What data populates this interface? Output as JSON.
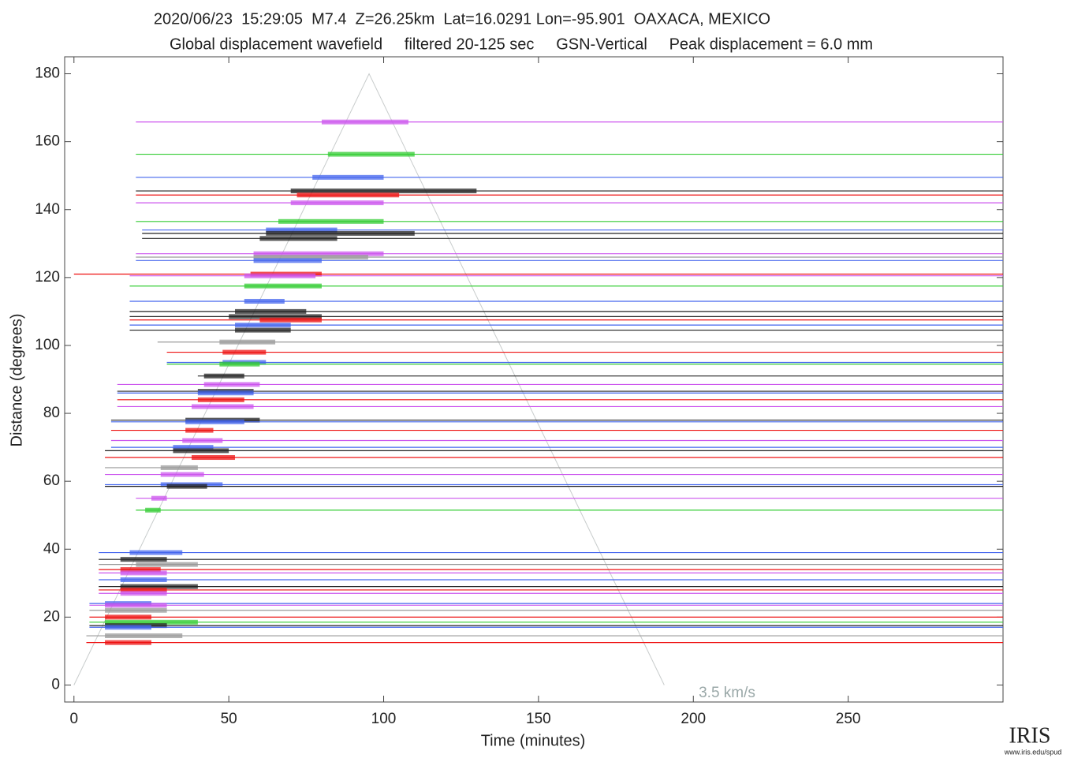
{
  "chart_data": {
    "type": "record-section",
    "title": "2020/06/23  15:29:05  M7.4  Z=26.25km  Lat=16.0291 Lon=-95.901  OAXACA, MEXICO",
    "subtitle": "Global displacement wavefield     filtered 20-125 sec     GSN-Vertical     Peak displacement = 6.0 mm",
    "x_label": "Time (minutes)",
    "y_label": "Distance (degrees)",
    "xlim": [
      -3,
      300
    ],
    "ylim": [
      -5,
      185
    ],
    "xticks": [
      0,
      50,
      100,
      150,
      200,
      250
    ],
    "yticks": [
      0,
      20,
      40,
      60,
      80,
      100,
      120,
      140,
      160,
      180
    ],
    "velocity_line": {
      "label": "3.5 km/s",
      "x": [
        0,
        95.3,
        190.6
      ],
      "y": [
        0,
        180,
        0
      ],
      "color": "#c8cccc"
    },
    "traces": [
      {
        "distance": 165.8,
        "color": "#cc55ee",
        "start": 20,
        "wave": [
          80,
          108
        ]
      },
      {
        "distance": 156.3,
        "color": "#33cc33",
        "start": 20,
        "wave": [
          82,
          110
        ]
      },
      {
        "distance": 149.5,
        "color": "#4466ee",
        "start": 20,
        "wave": [
          77,
          100
        ]
      },
      {
        "distance": 145.5,
        "color": "#222222",
        "start": 20,
        "wave": [
          70,
          130
        ]
      },
      {
        "distance": 144.3,
        "color": "#ee1111",
        "start": 20,
        "wave": [
          72,
          105
        ]
      },
      {
        "distance": 142.0,
        "color": "#cc55ee",
        "start": 20,
        "wave": [
          70,
          100
        ]
      },
      {
        "distance": 136.5,
        "color": "#33cc33",
        "start": 20,
        "wave": [
          66,
          100
        ]
      },
      {
        "distance": 134.0,
        "color": "#4466ee",
        "start": 22,
        "wave": [
          62,
          85
        ]
      },
      {
        "distance": 133.0,
        "color": "#222222",
        "start": 22,
        "wave": [
          62,
          110
        ]
      },
      {
        "distance": 131.5,
        "color": "#222222",
        "start": 22,
        "wave": [
          60,
          85
        ]
      },
      {
        "distance": 127.0,
        "color": "#cc55ee",
        "start": 20,
        "wave": [
          58,
          100
        ]
      },
      {
        "distance": 126.0,
        "color": "#999999",
        "start": 20,
        "wave": [
          58,
          95
        ]
      },
      {
        "distance": 125.0,
        "color": "#4466ee",
        "start": 20,
        "wave": [
          58,
          80
        ]
      },
      {
        "distance": 121.0,
        "color": "#ee1111",
        "start": 0,
        "wave": [
          57,
          80
        ]
      },
      {
        "distance": 120.5,
        "color": "#cc55ee",
        "start": 18,
        "wave": [
          55,
          78
        ]
      },
      {
        "distance": 117.5,
        "color": "#33cc33",
        "start": 18,
        "wave": [
          55,
          80
        ]
      },
      {
        "distance": 113.0,
        "color": "#4466ee",
        "start": 18,
        "wave": [
          55,
          68
        ]
      },
      {
        "distance": 110.0,
        "color": "#222222",
        "start": 18,
        "wave": [
          52,
          75
        ]
      },
      {
        "distance": 108.5,
        "color": "#222222",
        "start": 18,
        "wave": [
          50,
          80
        ]
      },
      {
        "distance": 107.5,
        "color": "#ee1111",
        "start": 18,
        "wave": [
          60,
          80
        ]
      },
      {
        "distance": 106.0,
        "color": "#4466ee",
        "start": 18,
        "wave": [
          52,
          70
        ]
      },
      {
        "distance": 104.5,
        "color": "#222222",
        "start": 18,
        "wave": [
          52,
          70
        ]
      },
      {
        "distance": 101.0,
        "color": "#999999",
        "start": 27,
        "wave": [
          47,
          65
        ]
      },
      {
        "distance": 98.0,
        "color": "#ee1111",
        "start": 30,
        "wave": [
          48,
          62
        ]
      },
      {
        "distance": 95.0,
        "color": "#4466ee",
        "start": 30,
        "wave": [
          48,
          62
        ]
      },
      {
        "distance": 94.5,
        "color": "#33cc33",
        "start": 30,
        "wave": [
          47,
          60
        ]
      },
      {
        "distance": 91.0,
        "color": "#222222",
        "start": 40,
        "wave": [
          42,
          55
        ]
      },
      {
        "distance": 88.5,
        "color": "#cc55ee",
        "start": 14,
        "wave": [
          42,
          60
        ]
      },
      {
        "distance": 86.5,
        "color": "#222222",
        "start": 14,
        "wave": [
          40,
          58
        ]
      },
      {
        "distance": 86.0,
        "color": "#4466ee",
        "start": 14,
        "wave": [
          40,
          58
        ]
      },
      {
        "distance": 84.0,
        "color": "#ee1111",
        "start": 14,
        "wave": [
          40,
          55
        ]
      },
      {
        "distance": 82.0,
        "color": "#cc55ee",
        "start": 14,
        "wave": [
          38,
          58
        ]
      },
      {
        "distance": 78.0,
        "color": "#222222",
        "start": 12,
        "wave": [
          36,
          60
        ]
      },
      {
        "distance": 77.5,
        "color": "#4466ee",
        "start": 12,
        "wave": [
          36,
          55
        ]
      },
      {
        "distance": 75.0,
        "color": "#ee1111",
        "start": 12,
        "wave": [
          36,
          45
        ]
      },
      {
        "distance": 72.0,
        "color": "#cc55ee",
        "start": 12,
        "wave": [
          35,
          48
        ]
      },
      {
        "distance": 70.0,
        "color": "#4466ee",
        "start": 12,
        "wave": [
          32,
          45
        ]
      },
      {
        "distance": 69.0,
        "color": "#222222",
        "start": 10,
        "wave": [
          32,
          50
        ]
      },
      {
        "distance": 67.0,
        "color": "#ee1111",
        "start": 10,
        "wave": [
          38,
          52
        ]
      },
      {
        "distance": 64.0,
        "color": "#999999",
        "start": 10,
        "wave": [
          28,
          40
        ]
      },
      {
        "distance": 62.0,
        "color": "#cc55ee",
        "start": 10,
        "wave": [
          28,
          42
        ]
      },
      {
        "distance": 59.0,
        "color": "#4466ee",
        "start": 10,
        "wave": [
          28,
          48
        ]
      },
      {
        "distance": 58.5,
        "color": "#222222",
        "start": 10,
        "wave": [
          30,
          43
        ]
      },
      {
        "distance": 55.0,
        "color": "#cc55ee",
        "start": 20,
        "wave": [
          25,
          30
        ]
      },
      {
        "distance": 51.5,
        "color": "#33cc33",
        "start": 20,
        "wave": [
          23,
          28
        ]
      },
      {
        "distance": 39.0,
        "color": "#4466ee",
        "start": 8,
        "wave": [
          18,
          35
        ]
      },
      {
        "distance": 37.0,
        "color": "#222222",
        "start": 8,
        "wave": [
          15,
          30
        ]
      },
      {
        "distance": 35.5,
        "color": "#999999",
        "start": 8,
        "wave": [
          20,
          40
        ]
      },
      {
        "distance": 34.0,
        "color": "#ee1111",
        "start": 8,
        "wave": [
          15,
          28
        ]
      },
      {
        "distance": 33.0,
        "color": "#cc55ee",
        "start": 8,
        "wave": [
          15,
          30
        ]
      },
      {
        "distance": 31.0,
        "color": "#4466ee",
        "start": 8,
        "wave": [
          15,
          30
        ]
      },
      {
        "distance": 29.0,
        "color": "#222222",
        "start": 8,
        "wave": [
          15,
          40
        ]
      },
      {
        "distance": 28.0,
        "color": "#ee1111",
        "start": 8,
        "wave": [
          15,
          30
        ]
      },
      {
        "distance": 27.0,
        "color": "#cc55ee",
        "start": 8,
        "wave": [
          15,
          30
        ]
      },
      {
        "distance": 24.0,
        "color": "#4466ee",
        "start": 5,
        "wave": [
          10,
          25
        ]
      },
      {
        "distance": 23.5,
        "color": "#cc55ee",
        "start": 5,
        "wave": [
          10,
          30
        ]
      },
      {
        "distance": 22.0,
        "color": "#999999",
        "start": 5,
        "wave": [
          10,
          30
        ]
      },
      {
        "distance": 20.0,
        "color": "#ee1111",
        "start": 5,
        "wave": [
          10,
          25
        ]
      },
      {
        "distance": 18.5,
        "color": "#33cc33",
        "start": 5,
        "wave": [
          10,
          40
        ]
      },
      {
        "distance": 17.5,
        "color": "#222222",
        "start": 5,
        "wave": [
          10,
          30
        ]
      },
      {
        "distance": 17.0,
        "color": "#4466ee",
        "start": 5,
        "wave": [
          10,
          25
        ]
      },
      {
        "distance": 14.5,
        "color": "#999999",
        "start": 4,
        "wave": [
          10,
          35
        ]
      },
      {
        "distance": 12.5,
        "color": "#ee1111",
        "start": 4,
        "wave": [
          10,
          25
        ]
      }
    ]
  },
  "footer": {
    "logo": "IRIS",
    "url": "www.iris.edu/spud"
  }
}
